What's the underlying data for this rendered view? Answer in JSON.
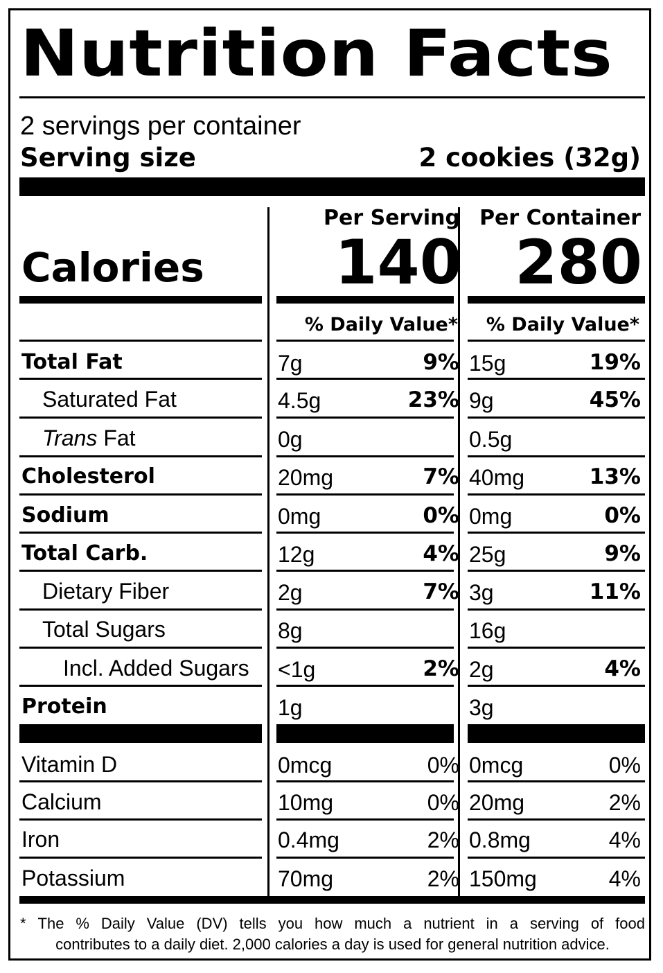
{
  "title": "Nutrition Facts",
  "servings_per_container": "2 servings per container",
  "serving_size_label": "Serving size",
  "serving_size_value": "2 cookies (32g)",
  "calories_label": "Calories",
  "columns": [
    {
      "heading": "Per Serving",
      "calories": "140",
      "dv_heading": "% Daily Value*"
    },
    {
      "heading": "Per Container",
      "calories": "280",
      "dv_heading": "% Daily Value*"
    }
  ],
  "nutrients": [
    {
      "name": "Total Fat",
      "style": "bold",
      "indent": 0,
      "serving": {
        "amount": "7g",
        "dv": "9%"
      },
      "container": {
        "amount": "15g",
        "dv": "19%"
      }
    },
    {
      "name": "Saturated Fat",
      "style": "normal",
      "indent": 1,
      "serving": {
        "amount": "4.5g",
        "dv": "23%"
      },
      "container": {
        "amount": "9g",
        "dv": "45%"
      }
    },
    {
      "name_italic": "Trans",
      "name": " Fat",
      "style": "normal",
      "indent": 1,
      "serving": {
        "amount": "0g",
        "dv": ""
      },
      "container": {
        "amount": "0.5g",
        "dv": ""
      }
    },
    {
      "name": "Cholesterol",
      "style": "bold",
      "indent": 0,
      "serving": {
        "amount": "20mg",
        "dv": "7%"
      },
      "container": {
        "amount": "40mg",
        "dv": "13%"
      }
    },
    {
      "name": "Sodium",
      "style": "bold",
      "indent": 0,
      "serving": {
        "amount": "0mg",
        "dv": "0%"
      },
      "container": {
        "amount": "0mg",
        "dv": "0%"
      }
    },
    {
      "name": "Total Carb.",
      "style": "bold",
      "indent": 0,
      "serving": {
        "amount": "12g",
        "dv": "4%"
      },
      "container": {
        "amount": "25g",
        "dv": "9%"
      }
    },
    {
      "name": "Dietary Fiber",
      "style": "normal",
      "indent": 1,
      "serving": {
        "amount": "2g",
        "dv": "7%"
      },
      "container": {
        "amount": "3g",
        "dv": "11%"
      }
    },
    {
      "name": "Total Sugars",
      "style": "normal",
      "indent": 1,
      "serving": {
        "amount": "8g",
        "dv": ""
      },
      "container": {
        "amount": "16g",
        "dv": ""
      }
    },
    {
      "name": "Incl. Added Sugars",
      "style": "normal",
      "indent": 2,
      "serving": {
        "amount": "<1g",
        "dv": "2%"
      },
      "container": {
        "amount": "2g",
        "dv": "4%"
      }
    },
    {
      "name": "Protein",
      "style": "bold",
      "indent": 0,
      "serving": {
        "amount": "1g",
        "dv": ""
      },
      "container": {
        "amount": "3g",
        "dv": ""
      }
    }
  ],
  "vitamins": [
    {
      "name": "Vitamin D",
      "serving": {
        "amount": "0mcg",
        "dv": "0%"
      },
      "container": {
        "amount": "0mcg",
        "dv": "0%"
      }
    },
    {
      "name": "Calcium",
      "serving": {
        "amount": "10mg",
        "dv": "0%"
      },
      "container": {
        "amount": "20mg",
        "dv": "2%"
      }
    },
    {
      "name": "Iron",
      "serving": {
        "amount": "0.4mg",
        "dv": "2%"
      },
      "container": {
        "amount": "0.8mg",
        "dv": "4%"
      }
    },
    {
      "name": "Potassium",
      "serving": {
        "amount": "70mg",
        "dv": "2%"
      },
      "container": {
        "amount": "150mg",
        "dv": "4%"
      }
    }
  ],
  "footnote": {
    "line1_words": [
      "*",
      "The",
      "%",
      "Daily",
      "Value",
      "(DV)",
      "tells",
      "you",
      "how",
      "much",
      "a",
      "nutrient",
      "in",
      "a",
      "serving",
      "of",
      "food"
    ],
    "line2": "contributes to a daily diet. 2,000 calories a day is used for general nutrition advice."
  }
}
